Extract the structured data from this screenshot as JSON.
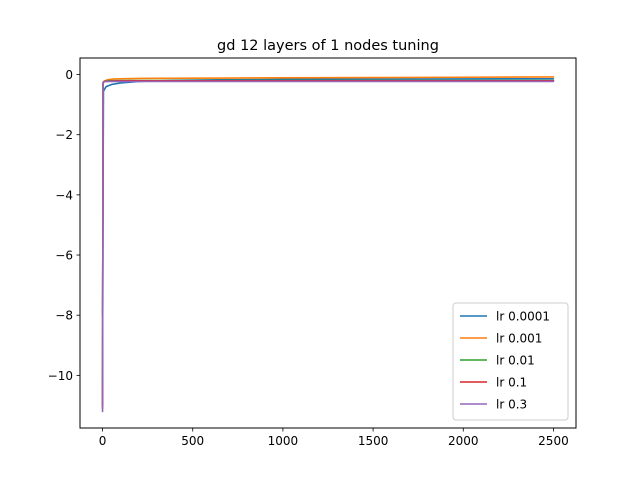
{
  "chart_data": {
    "type": "line",
    "title": "gd 12 layers of 1 nodes tuning",
    "xlabel": "",
    "ylabel": "",
    "xlim": [
      -125,
      2625
    ],
    "ylim": [
      -11.75,
      0.55
    ],
    "xticks": [
      0,
      500,
      1000,
      1500,
      2000,
      2500
    ],
    "xtick_labels": [
      "0",
      "500",
      "1000",
      "1500",
      "2000",
      "2500"
    ],
    "yticks": [
      0,
      -2,
      -4,
      -6,
      -8,
      -10
    ],
    "ytick_labels": [
      "0",
      "−2",
      "−4",
      "−6",
      "−8",
      "−10"
    ],
    "grid": false,
    "legend_position": "lower-right",
    "series": [
      {
        "name": "lr 0.0001",
        "color": "#1f77b4",
        "x": [
          0,
          5,
          20,
          50,
          100,
          200,
          400,
          700,
          1000,
          1500,
          2000,
          2500
        ],
        "y": [
          -8.0,
          -0.55,
          -0.4,
          -0.33,
          -0.28,
          -0.23,
          -0.19,
          -0.17,
          -0.16,
          -0.15,
          -0.145,
          -0.14
        ]
      },
      {
        "name": "lr 0.001",
        "color": "#ff7f0e",
        "x": [
          0,
          3,
          10,
          30,
          60,
          100,
          200,
          500,
          1000,
          1500,
          2000,
          2500
        ],
        "y": [
          -11.0,
          -0.3,
          -0.22,
          -0.17,
          -0.15,
          -0.14,
          -0.13,
          -0.12,
          -0.11,
          -0.1,
          -0.09,
          -0.08
        ]
      },
      {
        "name": "lr 0.01",
        "color": "#2ca02c",
        "x": [
          0,
          3,
          10,
          30,
          100,
          200,
          500,
          1000,
          1500,
          2000,
          2500
        ],
        "y": [
          -11.0,
          -0.26,
          -0.22,
          -0.21,
          -0.2,
          -0.2,
          -0.2,
          -0.2,
          -0.2,
          -0.2,
          -0.2
        ]
      },
      {
        "name": "lr 0.1",
        "color": "#d62728",
        "x": [
          0,
          3,
          10,
          30,
          100,
          200,
          500,
          1000,
          1500,
          2000,
          2500
        ],
        "y": [
          -11.1,
          -0.26,
          -0.23,
          -0.22,
          -0.21,
          -0.21,
          -0.21,
          -0.21,
          -0.21,
          -0.21,
          -0.21
        ]
      },
      {
        "name": "lr 0.3",
        "color": "#9467bd",
        "x": [
          0,
          3,
          10,
          30,
          100,
          200,
          500,
          1000,
          1500,
          2000,
          2500
        ],
        "y": [
          -11.2,
          -0.27,
          -0.24,
          -0.23,
          -0.23,
          -0.23,
          -0.23,
          -0.23,
          -0.23,
          -0.23,
          -0.23
        ]
      }
    ]
  }
}
